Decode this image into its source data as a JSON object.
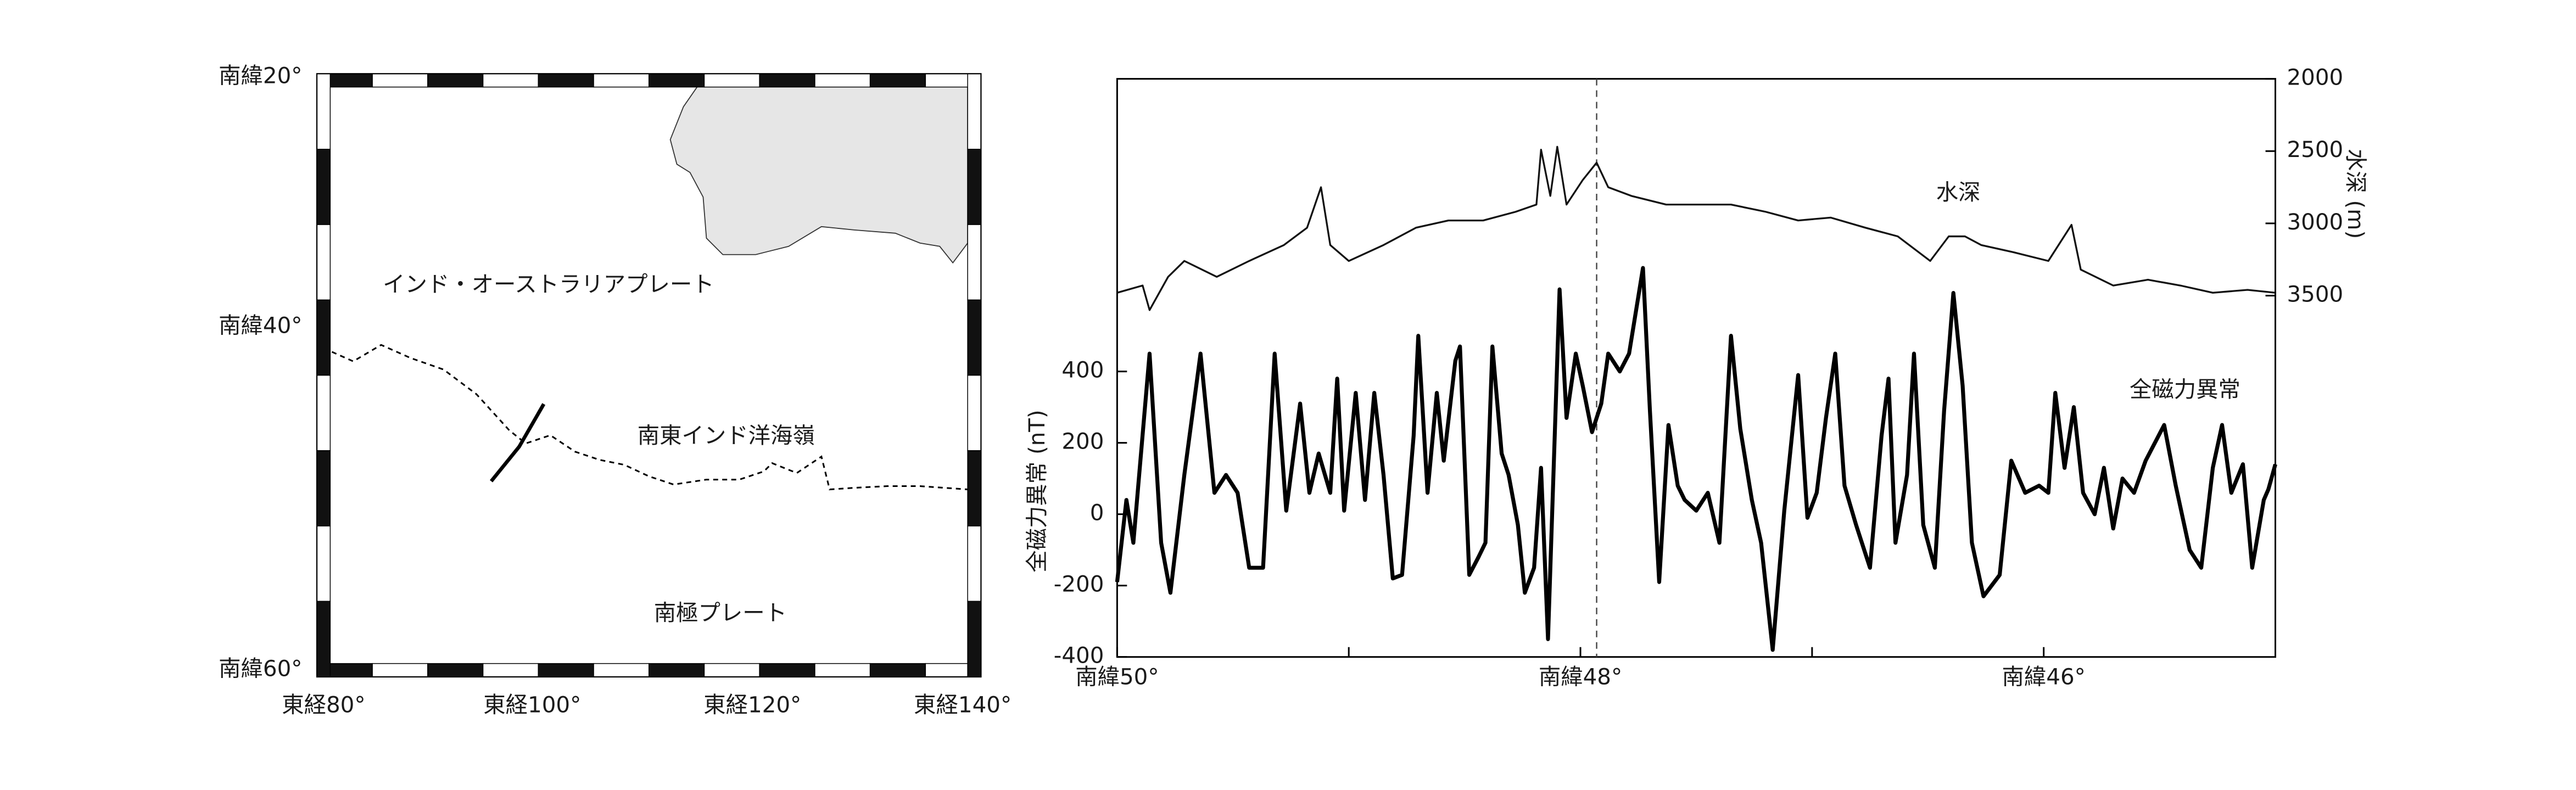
{
  "map": {
    "lat_labels": [
      "南緯20°",
      "南緯40°",
      "南緯60°"
    ],
    "lon_labels": [
      "東経80°",
      "東経100°",
      "東経120°",
      "東経140°"
    ],
    "regions": [
      "インド・オーストラリアプレート",
      "南東インド洋海嶺",
      "南極プレート"
    ]
  },
  "chart_data": {
    "type": "line",
    "y_label": "全磁力異常 (nT)",
    "y2_label": "水深 (m)",
    "xlim": [
      50,
      45
    ],
    "xticks": [
      {
        "value": 50,
        "label": "南緯50°"
      },
      {
        "value": 48,
        "label": "南緯48°"
      },
      {
        "value": 46,
        "label": "南緯46°"
      }
    ],
    "xminorticks": [
      49,
      47
    ],
    "ylim": [
      -400,
      1220
    ],
    "yticks": [
      -400,
      -200,
      0,
      200,
      400
    ],
    "y2lim": [
      6000,
      2000
    ],
    "y2ticks": [
      2000,
      2500,
      3000,
      3500
    ],
    "reference_x": 47.93,
    "series": [
      {
        "name": "水深",
        "axis": "y2",
        "color": "#111111",
        "x": [
          50.0,
          49.89,
          49.86,
          49.78,
          49.71,
          49.57,
          49.43,
          49.28,
          49.18,
          49.12,
          49.08,
          49.0,
          48.85,
          48.71,
          48.57,
          48.42,
          48.28,
          48.19,
          48.17,
          48.13,
          48.1,
          48.06,
          47.99,
          47.93,
          47.88,
          47.78,
          47.63,
          47.49,
          47.35,
          47.2,
          47.06,
          46.92,
          46.77,
          46.63,
          46.49,
          46.41,
          46.34,
          46.27,
          46.13,
          45.98,
          45.88,
          45.84,
          45.7,
          45.55,
          45.41,
          45.27,
          45.12,
          45.0
        ],
        "values": [
          3480,
          3430,
          3600,
          3370,
          3260,
          3370,
          3260,
          3150,
          3030,
          2750,
          3150,
          3260,
          3150,
          3030,
          2980,
          2980,
          2920,
          2870,
          2490,
          2810,
          2470,
          2870,
          2700,
          2580,
          2750,
          2810,
          2870,
          2870,
          2870,
          2920,
          2980,
          2960,
          3030,
          3090,
          3260,
          3090,
          3090,
          3150,
          3200,
          3260,
          3010,
          3320,
          3430,
          3390,
          3430,
          3480,
          3460,
          3480
        ]
      },
      {
        "name": "全磁力異常",
        "color": "#000000",
        "x": [
          50.0,
          49.96,
          49.93,
          49.86,
          49.81,
          49.77,
          49.71,
          49.64,
          49.58,
          49.53,
          49.48,
          49.43,
          49.37,
          49.32,
          49.27,
          49.21,
          49.17,
          49.13,
          49.08,
          49.05,
          49.02,
          48.97,
          48.93,
          48.89,
          48.85,
          48.81,
          48.77,
          48.72,
          48.7,
          48.66,
          48.62,
          48.59,
          48.54,
          48.52,
          48.48,
          48.44,
          48.41,
          48.38,
          48.34,
          48.31,
          48.27,
          48.24,
          48.2,
          48.17,
          48.14,
          48.09,
          48.06,
          48.02,
          47.99,
          47.95,
          47.91,
          47.88,
          47.83,
          47.79,
          47.73,
          47.7,
          47.66,
          47.62,
          47.58,
          47.55,
          47.5,
          47.45,
          47.4,
          47.35,
          47.31,
          47.26,
          47.22,
          47.17,
          47.12,
          47.06,
          47.02,
          46.98,
          46.94,
          46.9,
          46.86,
          46.81,
          46.75,
          46.7,
          46.67,
          46.64,
          46.59,
          46.56,
          46.52,
          46.47,
          46.43,
          46.39,
          46.35,
          46.31,
          46.26,
          46.19,
          46.14,
          46.08,
          46.02,
          45.98,
          45.95,
          45.91,
          45.87,
          45.83,
          45.78,
          45.74,
          45.7,
          45.66,
          45.61,
          45.56,
          45.48,
          45.43,
          45.37,
          45.32,
          45.27,
          45.23,
          45.19,
          45.14,
          45.1,
          45.05,
          45.03,
          45.0
        ],
        "values": [
          -190,
          40,
          -80,
          450,
          -80,
          -220,
          110,
          450,
          60,
          110,
          60,
          -150,
          -150,
          450,
          10,
          310,
          60,
          170,
          60,
          380,
          10,
          340,
          40,
          340,
          110,
          -180,
          -170,
          220,
          500,
          60,
          340,
          150,
          430,
          470,
          -170,
          -120,
          -80,
          470,
          170,
          110,
          -30,
          -220,
          -150,
          130,
          -350,
          630,
          270,
          450,
          360,
          230,
          310,
          450,
          400,
          450,
          690,
          290,
          -190,
          250,
          80,
          40,
          10,
          60,
          -80,
          500,
          240,
          40,
          -80,
          -380,
          10,
          390,
          -10,
          60,
          270,
          450,
          80,
          -30,
          -150,
          220,
          380,
          -80,
          110,
          450,
          -30,
          -150,
          290,
          620,
          360,
          -80,
          -230,
          -170,
          150,
          60,
          80,
          60,
          340,
          130,
          300,
          60,
          0,
          130,
          -40,
          100,
          60,
          150,
          250,
          80,
          -100,
          -150,
          130,
          250,
          60,
          140,
          -150,
          40,
          70,
          140
        ]
      }
    ]
  }
}
